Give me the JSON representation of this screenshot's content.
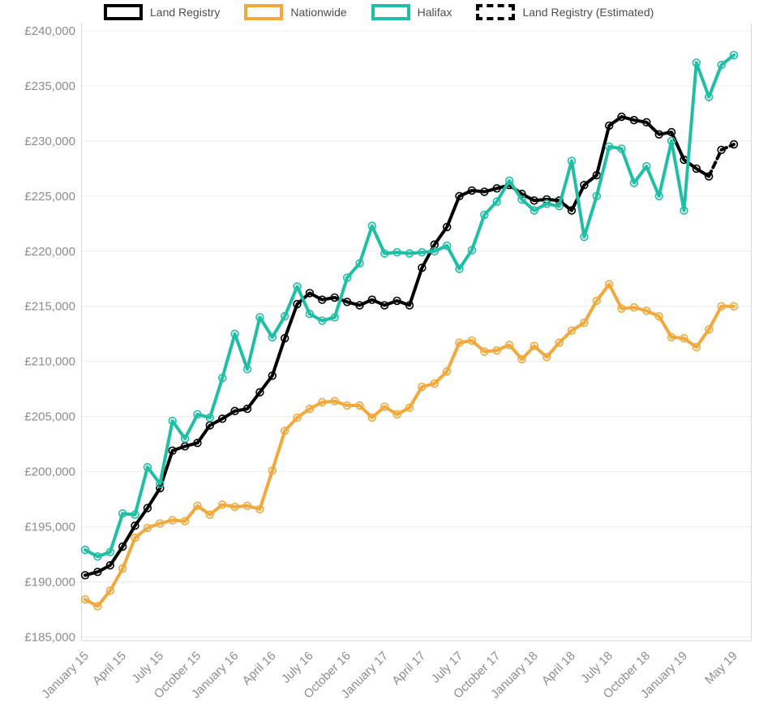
{
  "chart_data": {
    "type": "line",
    "title": "",
    "xlabel": "",
    "ylabel": "",
    "ylim": [
      185000,
      240000
    ],
    "grid": "horizontal",
    "legend_position": "top",
    "currency": "GBP",
    "legend": [
      {
        "label": "Land Registry",
        "color": "#000000",
        "dashed": false
      },
      {
        "label": "Nationwide",
        "color": "#f3a83b",
        "dashed": false
      },
      {
        "label": "Halifax",
        "color": "#1ebfa5",
        "dashed": false
      },
      {
        "label": "Land Registry (Estimated)",
        "color": "#000000",
        "dashed": true
      }
    ],
    "y_ticks": [
      {
        "value": 240000,
        "label": "£240,000"
      },
      {
        "value": 235000,
        "label": "£235,000"
      },
      {
        "value": 230000,
        "label": "£230,000"
      },
      {
        "value": 225000,
        "label": "£225,000"
      },
      {
        "value": 220000,
        "label": "£220,000"
      },
      {
        "value": 215000,
        "label": "£215,000"
      },
      {
        "value": 210000,
        "label": "£210,000"
      },
      {
        "value": 205000,
        "label": "£205,000"
      },
      {
        "value": 200000,
        "label": "£200,000"
      },
      {
        "value": 195000,
        "label": "£195,000"
      },
      {
        "value": 190000,
        "label": "£190,000"
      },
      {
        "value": 185000,
        "label": "£185,000"
      }
    ],
    "x_ticks": [
      {
        "month_index": 0,
        "label": "January 15"
      },
      {
        "month_index": 3,
        "label": "April 15"
      },
      {
        "month_index": 6,
        "label": "July 15"
      },
      {
        "month_index": 9,
        "label": "October 15"
      },
      {
        "month_index": 12,
        "label": "January 16"
      },
      {
        "month_index": 15,
        "label": "April 16"
      },
      {
        "month_index": 18,
        "label": "July 16"
      },
      {
        "month_index": 21,
        "label": "October 16"
      },
      {
        "month_index": 24,
        "label": "January 17"
      },
      {
        "month_index": 27,
        "label": "April 17"
      },
      {
        "month_index": 30,
        "label": "July 17"
      },
      {
        "month_index": 33,
        "label": "October 17"
      },
      {
        "month_index": 36,
        "label": "January 18"
      },
      {
        "month_index": 39,
        "label": "April 18"
      },
      {
        "month_index": 42,
        "label": "July 18"
      },
      {
        "month_index": 45,
        "label": "October 18"
      },
      {
        "month_index": 48,
        "label": "January 19"
      },
      {
        "month_index": 52,
        "label": "May 19"
      }
    ],
    "series": [
      {
        "name": "Land Registry",
        "color": "#000000",
        "dashed": false,
        "start_index": 0,
        "values": [
          190600,
          190900,
          191500,
          193200,
          195100,
          196700,
          198500,
          201900,
          202300,
          202600,
          204200,
          204800,
          205500,
          205700,
          207200,
          208700,
          212100,
          215200,
          216200,
          215600,
          215800,
          215400,
          215100,
          215600,
          215100,
          215500,
          215100,
          218500,
          220600,
          222200,
          225000,
          225500,
          225400,
          225700,
          226000,
          225200,
          224600,
          224700,
          224600,
          223700,
          226000,
          226900,
          231400,
          232200,
          231900,
          231700,
          230600,
          230800,
          228300,
          227500,
          226800
        ]
      },
      {
        "name": "Nationwide",
        "color": "#f3a83b",
        "dashed": false,
        "start_index": 0,
        "values": [
          188400,
          187800,
          189200,
          191200,
          194000,
          194900,
          195300,
          195600,
          195500,
          196900,
          196100,
          197000,
          196800,
          196900,
          196600,
          200100,
          203700,
          204900,
          205700,
          206300,
          206400,
          206000,
          206000,
          204900,
          205900,
          205200,
          205800,
          207700,
          208000,
          209100,
          211700,
          211900,
          210900,
          211000,
          211500,
          210200,
          211400,
          210400,
          211700,
          212800,
          213500,
          215500,
          217000,
          214800,
          214900,
          214600,
          214100,
          212200,
          212100,
          211300,
          212900,
          215000,
          215000
        ]
      },
      {
        "name": "Halifax",
        "color": "#1ebfa5",
        "dashed": false,
        "start_index": 0,
        "values": [
          192900,
          192300,
          192700,
          196200,
          196100,
          200400,
          198900,
          204600,
          203000,
          205200,
          204900,
          208500,
          212500,
          209300,
          214000,
          212200,
          214100,
          216800,
          214300,
          213700,
          214000,
          217600,
          218900,
          222300,
          219800,
          219900,
          219800,
          219900,
          220000,
          220500,
          218400,
          220100,
          223300,
          224500,
          226400,
          224700,
          223700,
          224300,
          224100,
          228200,
          221300,
          225000,
          229500,
          229300,
          226200,
          227700,
          225000,
          230000,
          223700,
          237100,
          234000,
          236900,
          237800
        ]
      },
      {
        "name": "Land Registry (Estimated)",
        "color": "#000000",
        "dashed": true,
        "start_index": 50,
        "values": [
          226800,
          229200,
          229700
        ]
      }
    ]
  }
}
